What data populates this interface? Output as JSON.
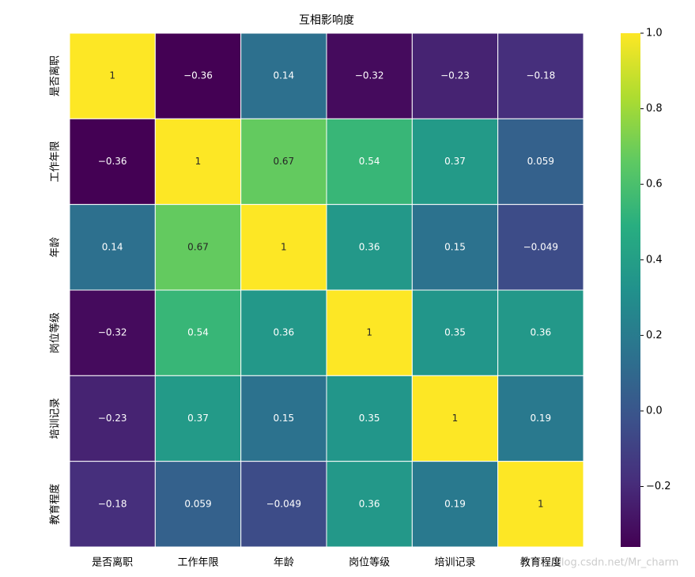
{
  "chart_data": {
    "type": "heatmap",
    "title": "互相影响度",
    "x_categories": [
      "是否离职",
      "工作年限",
      "年龄",
      "岗位等级",
      "培训记录",
      "教育程度"
    ],
    "y_categories": [
      "是否离职",
      "工作年限",
      "年龄",
      "岗位等级",
      "培训记录",
      "教育程度"
    ],
    "values": [
      [
        1,
        -0.36,
        0.14,
        -0.32,
        -0.23,
        -0.18
      ],
      [
        -0.36,
        1,
        0.67,
        0.54,
        0.37,
        0.059
      ],
      [
        0.14,
        0.67,
        1,
        0.36,
        0.15,
        -0.049
      ],
      [
        -0.32,
        0.54,
        0.36,
        1,
        0.35,
        0.36
      ],
      [
        -0.23,
        0.37,
        0.15,
        0.35,
        1,
        0.19
      ],
      [
        -0.18,
        0.059,
        -0.049,
        0.36,
        0.19,
        1
      ]
    ],
    "value_labels": [
      [
        "1",
        "−0.36",
        "0.14",
        "−0.32",
        "−0.23",
        "−0.18"
      ],
      [
        "−0.36",
        "1",
        "0.67",
        "0.54",
        "0.37",
        "0.059"
      ],
      [
        "0.14",
        "0.67",
        "1",
        "0.36",
        "0.15",
        "−0.049"
      ],
      [
        "−0.32",
        "0.54",
        "0.36",
        "1",
        "0.35",
        "0.36"
      ],
      [
        "−0.23",
        "0.37",
        "0.15",
        "0.35",
        "1",
        "0.19"
      ],
      [
        "−0.18",
        "0.059",
        "−0.049",
        "0.36",
        "0.19",
        "1"
      ]
    ],
    "colormap": "viridis",
    "clim": [
      -0.36,
      1
    ],
    "cticks": [
      {
        "value": -0.2,
        "label": "−0.2"
      },
      {
        "value": 0,
        "label": "0.0"
      },
      {
        "value": 0.2,
        "label": "0.2"
      },
      {
        "value": 0.4,
        "label": "0.4"
      },
      {
        "value": 0.6,
        "label": "0.6"
      },
      {
        "value": 0.8,
        "label": "0.8"
      },
      {
        "value": 1,
        "label": "1.0"
      }
    ],
    "watermark": "blog.csdn.net/Mr_charm"
  }
}
